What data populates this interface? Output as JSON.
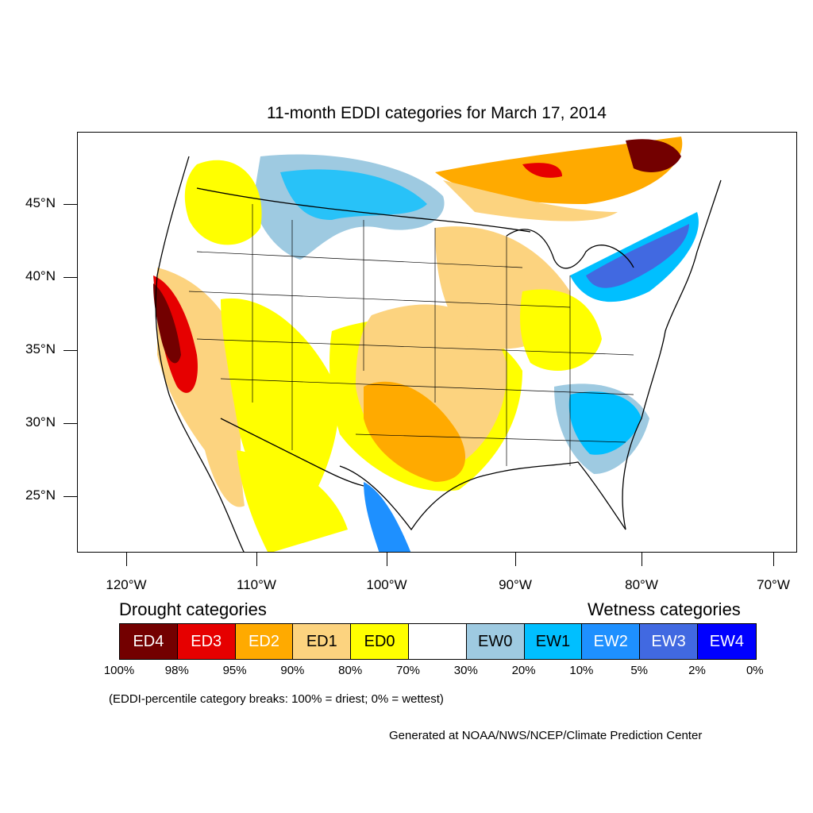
{
  "title": "11-month EDDI categories for March 17, 2014",
  "map": {
    "lat_labels": [
      "45°N",
      "40°N",
      "35°N",
      "30°N",
      "25°N"
    ],
    "lon_labels": [
      "120°W",
      "110°W",
      "100°W",
      "90°W",
      "80°W",
      "70°W"
    ]
  },
  "legend": {
    "drought_heading": "Drought categories",
    "wetness_heading": "Wetness categories",
    "categories": [
      {
        "label": "ED4",
        "color": "#730000",
        "text_color": "#ffffff"
      },
      {
        "label": "ED3",
        "color": "#e60000",
        "text_color": "#ffffff"
      },
      {
        "label": "ED2",
        "color": "#ffaa00",
        "text_color": "#ffffff"
      },
      {
        "label": "ED1",
        "color": "#fcd37f",
        "text_color": "#000000"
      },
      {
        "label": "ED0",
        "color": "#ffff00",
        "text_color": "#000000"
      },
      {
        "label": "",
        "color": "#ffffff",
        "text_color": "#000000"
      },
      {
        "label": "EW0",
        "color": "#9ecae1",
        "text_color": "#000000"
      },
      {
        "label": "EW1",
        "color": "#00bfff",
        "text_color": "#000000"
      },
      {
        "label": "EW2",
        "color": "#1e90ff",
        "text_color": "#ffffff"
      },
      {
        "label": "EW3",
        "color": "#4169e1",
        "text_color": "#ffffff"
      },
      {
        "label": "EW4",
        "color": "#0000ff",
        "text_color": "#ffffff"
      }
    ],
    "percentiles": [
      "100%",
      "98%",
      "95%",
      "90%",
      "80%",
      "70%",
      "30%",
      "20%",
      "10%",
      "5%",
      "2%",
      "0%"
    ]
  },
  "note": "(EDDI-percentile category breaks: 100% = driest; 0% = wettest)",
  "credit": "Generated at NOAA/NWS/NCEP/Climate Prediction Center"
}
